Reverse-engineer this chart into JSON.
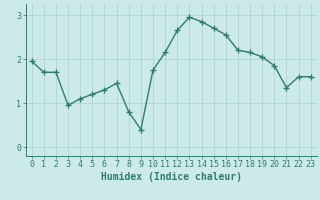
{
  "x": [
    0,
    1,
    2,
    3,
    4,
    5,
    6,
    7,
    8,
    9,
    10,
    11,
    12,
    13,
    14,
    15,
    16,
    17,
    18,
    19,
    20,
    21,
    22,
    23
  ],
  "y": [
    1.95,
    1.7,
    1.7,
    0.95,
    1.1,
    1.2,
    1.3,
    1.45,
    0.8,
    0.4,
    1.75,
    2.15,
    2.65,
    2.95,
    2.85,
    2.7,
    2.55,
    2.2,
    2.15,
    2.05,
    1.85,
    1.35,
    1.6,
    1.6
  ],
  "line_color": "#2e7d6e",
  "marker": "+",
  "markersize": 4,
  "linewidth": 1.0,
  "bg_color": "#cceae8",
  "grid_color": "#b0d5d2",
  "xlabel": "Humidex (Indice chaleur)",
  "xlim": [
    -0.5,
    23.5
  ],
  "ylim": [
    -0.2,
    3.25
  ],
  "yticks": [
    0,
    1,
    2,
    3
  ],
  "xticks": [
    0,
    1,
    2,
    3,
    4,
    5,
    6,
    7,
    8,
    9,
    10,
    11,
    12,
    13,
    14,
    15,
    16,
    17,
    18,
    19,
    20,
    21,
    22,
    23
  ],
  "tick_color": "#2e7d6e",
  "label_color": "#2e7d6e",
  "xlabel_fontsize": 7,
  "tick_fontsize": 6
}
